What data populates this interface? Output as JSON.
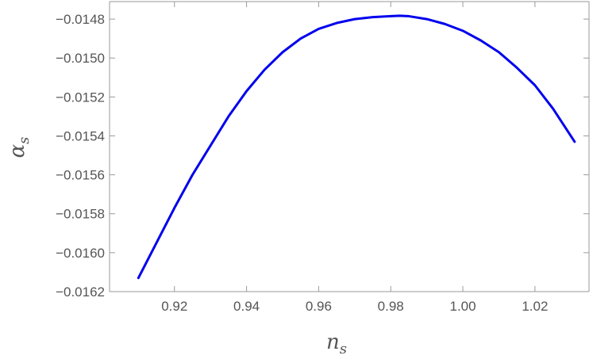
{
  "chart_data": {
    "type": "line",
    "xlabel": {
      "main": "n",
      "sub": "s"
    },
    "ylabel": {
      "main": "α",
      "sub": "s"
    },
    "xlim": [
      0.902,
      1.035
    ],
    "ylim": [
      -0.0162,
      -0.01471
    ],
    "x_ticks": [
      0.92,
      0.94,
      0.96,
      0.98,
      1.0,
      1.02
    ],
    "x_tick_labels": [
      "0.92",
      "0.94",
      "0.96",
      "0.98",
      "1.00",
      "1.02"
    ],
    "y_ticks": [
      -0.0162,
      -0.016,
      -0.0158,
      -0.0156,
      -0.0154,
      -0.0152,
      -0.015,
      -0.0148
    ],
    "y_tick_labels": [
      "−0.0162",
      "−0.0160",
      "−0.0158",
      "−0.0156",
      "−0.0154",
      "−0.0152",
      "−0.0150",
      "−0.0148"
    ],
    "grid": false,
    "series": [
      {
        "color": "#0000ee",
        "x": [
          0.91,
          0.915,
          0.92,
          0.925,
          0.93,
          0.935,
          0.94,
          0.945,
          0.95,
          0.955,
          0.96,
          0.965,
          0.97,
          0.975,
          0.98,
          0.9825,
          0.985,
          0.99,
          0.995,
          1.0,
          1.005,
          1.01,
          1.015,
          1.02,
          1.025,
          1.031
        ],
        "y": [
          -0.01613,
          -0.01595,
          -0.01577,
          -0.0156,
          -0.01545,
          -0.0153,
          -0.01517,
          -0.01506,
          -0.01497,
          -0.0149,
          -0.01485,
          -0.01482,
          -0.0148,
          -0.01479,
          -0.014785,
          -0.014783,
          -0.014785,
          -0.0148,
          -0.014825,
          -0.01486,
          -0.01491,
          -0.01497,
          -0.01505,
          -0.01514,
          -0.01526,
          -0.01543
        ]
      }
    ]
  }
}
